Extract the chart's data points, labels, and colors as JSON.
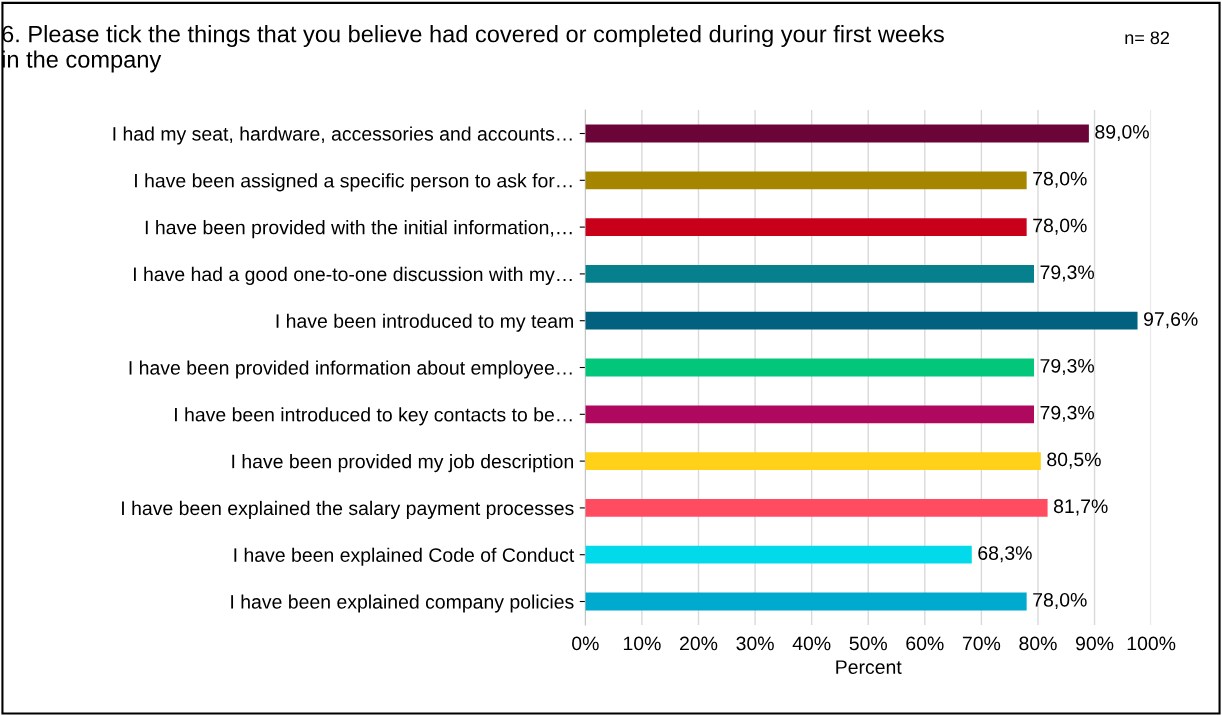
{
  "chart_data": {
    "type": "bar",
    "orientation": "horizontal",
    "title": "6. Please tick the things that you believe had covered or completed during your first weeks in the company",
    "annotations": [
      "n= 82"
    ],
    "xlabel": "Percent",
    "categories": [
      "I had my seat, hardware, accessories and accounts…",
      "I have been assigned a specific person to ask for…",
      "I have been provided with the initial information,…",
      "I have had a good one-to-one discussion with my…",
      "I have been introduced to my team",
      "I have been provided information about employee…",
      "I have been introduced to key contacts to be…",
      "I have been provided my job description",
      "I have been explained the salary payment processes",
      "I have been explained Code of Conduct",
      "I have been explained company policies"
    ],
    "values": [
      89.0,
      78.0,
      78.0,
      79.3,
      97.6,
      79.3,
      79.3,
      80.5,
      81.7,
      68.3,
      78.0
    ],
    "value_labels": [
      "89,0%",
      "78,0%",
      "78,0%",
      "79,3%",
      "97,6%",
      "79,3%",
      "79,3%",
      "80,5%",
      "81,7%",
      "68,3%",
      "78,0%"
    ],
    "colors": [
      "#6b0538",
      "#a68600",
      "#c8001a",
      "#06808c",
      "#02617e",
      "#02c77a",
      "#ae095e",
      "#ffd119",
      "#ff4c60",
      "#02d9ea",
      "#00aacf"
    ],
    "xlim": [
      0,
      100
    ],
    "xticks": [
      {
        "value": 0,
        "label": "0%"
      },
      {
        "value": 10,
        "label": "10%"
      },
      {
        "value": 20,
        "label": "20%"
      },
      {
        "value": 30,
        "label": "30%"
      },
      {
        "value": 40,
        "label": "40%"
      },
      {
        "value": 50,
        "label": "50%"
      },
      {
        "value": 60,
        "label": "60%"
      },
      {
        "value": 70,
        "label": "70%"
      },
      {
        "value": 80,
        "label": "80%"
      },
      {
        "value": 90,
        "label": "90%"
      },
      {
        "value": 100,
        "label": "100%"
      }
    ],
    "grid": "x",
    "legend": false
  }
}
